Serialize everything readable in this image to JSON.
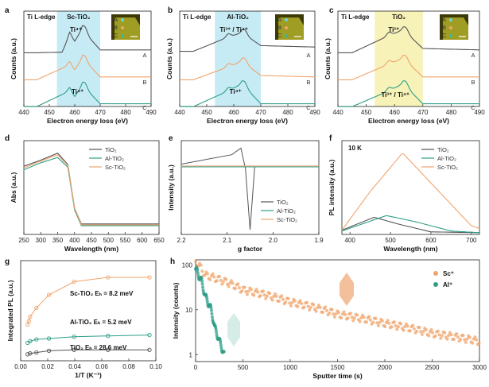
{
  "colors": {
    "tio2": "#555555",
    "al": "#2e9e87",
    "sc": "#f0a46c",
    "cyan_band": "#c6ebf5",
    "yellow_band": "#f7f2b8"
  },
  "chart_data": [
    {
      "panel": "a",
      "type": "line",
      "title": "Ti L-edge",
      "band_label": "Sc-TiO₂",
      "xlabel": "Electron energy loss (eV)",
      "ylabel": "Counts (a.u.)",
      "xlim": [
        440,
        490
      ],
      "xticks": [
        "440",
        "450",
        "460",
        "470",
        "480",
        "490"
      ],
      "band": [
        453,
        470
      ],
      "series": [
        {
          "name": "A",
          "values": [
            [
              445,
              0.1
            ],
            [
              455,
              0.12
            ],
            [
              458,
              0.7
            ],
            [
              460,
              0.5
            ],
            [
              463,
              0.95
            ],
            [
              466,
              0.6
            ],
            [
              470,
              0.2
            ],
            [
              490,
              0.2
            ]
          ]
        },
        {
          "name": "B",
          "values": [
            [
              445,
              0.1
            ],
            [
              458,
              0.62
            ],
            [
              460,
              0.45
            ],
            [
              463,
              0.85
            ],
            [
              470,
              0.2
            ],
            [
              490,
              0.2
            ]
          ]
        },
        {
          "name": "C",
          "values": [
            [
              445,
              0.05
            ],
            [
              458,
              0.6
            ],
            [
              460,
              0.4
            ],
            [
              463,
              0.8
            ],
            [
              470,
              0.15
            ],
            [
              490,
              0.15
            ]
          ]
        }
      ],
      "annotations": [
        "Ti⁴⁺",
        "Ti⁴⁺"
      ],
      "inset_labels": [
        "A",
        "B",
        "C"
      ]
    },
    {
      "panel": "b",
      "type": "line",
      "title": "Ti L-edge",
      "band_label": "Al-TiO₂",
      "xlabel": "Electron energy loss (eV)",
      "ylabel": "Counts (a.u.)",
      "xlim": [
        440,
        490
      ],
      "xticks": [
        "440",
        "450",
        "460",
        "470",
        "480",
        "490"
      ],
      "band": [
        453,
        470
      ],
      "series": [
        {
          "name": "A",
          "values": [
            [
              445,
              0.15
            ],
            [
              458,
              0.65
            ],
            [
              463,
              0.8
            ],
            [
              470,
              0.35
            ],
            [
              490,
              0.3
            ]
          ]
        },
        {
          "name": "B",
          "values": [
            [
              445,
              0.1
            ],
            [
              458,
              0.55
            ],
            [
              463,
              0.75
            ],
            [
              470,
              0.25
            ],
            [
              490,
              0.2
            ]
          ]
        },
        {
          "name": "C",
          "values": [
            [
              445,
              0.05
            ],
            [
              458,
              0.6
            ],
            [
              463,
              0.85
            ],
            [
              470,
              0.15
            ],
            [
              490,
              0.15
            ]
          ]
        }
      ],
      "annotations": [
        "Ti³⁺ / Ti⁴⁺",
        "Ti⁴⁺"
      ],
      "inset_labels": [
        "A",
        "B",
        "C"
      ]
    },
    {
      "panel": "c",
      "type": "line",
      "title": "Ti L-edge",
      "band_label": "TiO₂",
      "xlabel": "Electron energy loss (eV)",
      "ylabel": "Counts (a.u.)",
      "xlim": [
        440,
        490
      ],
      "xticks": [
        "440",
        "450",
        "460",
        "470",
        "480",
        "490"
      ],
      "band": [
        453,
        470
      ],
      "series": [
        {
          "name": "A",
          "values": [
            [
              445,
              0.1
            ],
            [
              458,
              0.7
            ],
            [
              463,
              0.9
            ],
            [
              470,
              0.25
            ],
            [
              490,
              0.2
            ]
          ]
        },
        {
          "name": "B",
          "values": [
            [
              445,
              0.1
            ],
            [
              458,
              0.65
            ],
            [
              463,
              0.85
            ],
            [
              470,
              0.2
            ],
            [
              490,
              0.2
            ]
          ]
        },
        {
          "name": "C",
          "values": [
            [
              445,
              0.05
            ],
            [
              458,
              0.6
            ],
            [
              463,
              0.85
            ],
            [
              470,
              0.15
            ],
            [
              490,
              0.15
            ]
          ]
        }
      ],
      "annotations": [
        "Ti³⁺",
        "Ti³⁺ / Ti⁴⁺"
      ],
      "inset_labels": [
        "A",
        "B",
        "C"
      ]
    },
    {
      "panel": "d",
      "type": "line",
      "xlabel": "Wavelength (nm)",
      "ylabel": "Abs (a.u.)",
      "xlim": [
        250,
        650
      ],
      "xticks": [
        "250",
        "300",
        "350",
        "400",
        "450",
        "500",
        "550",
        "600",
        "650"
      ],
      "legend": [
        "TiO₂",
        "Al-TiO₂",
        "Sc-TiO₂"
      ],
      "series": [
        {
          "name": "TiO₂",
          "values": [
            [
              250,
              0.78
            ],
            [
              300,
              0.85
            ],
            [
              350,
              0.93
            ],
            [
              380,
              0.8
            ],
            [
              400,
              0.3
            ],
            [
              420,
              0.12
            ],
            [
              650,
              0.12
            ]
          ]
        },
        {
          "name": "Al-TiO₂",
          "values": [
            [
              250,
              0.74
            ],
            [
              300,
              0.82
            ],
            [
              350,
              0.88
            ],
            [
              380,
              0.77
            ],
            [
              400,
              0.28
            ],
            [
              420,
              0.1
            ],
            [
              650,
              0.1
            ]
          ]
        },
        {
          "name": "Sc-TiO₂",
          "values": [
            [
              250,
              0.76
            ],
            [
              300,
              0.84
            ],
            [
              350,
              0.91
            ],
            [
              380,
              0.79
            ],
            [
              400,
              0.3
            ],
            [
              420,
              0.11
            ],
            [
              650,
              0.11
            ]
          ]
        }
      ]
    },
    {
      "panel": "e",
      "type": "line",
      "xlabel": "g factor",
      "ylabel": "Intensity (a.u.)",
      "xlim": [
        2.2,
        1.9
      ],
      "xticks": [
        "2.2",
        "2.1",
        "2.0",
        "1.9"
      ],
      "legend": [
        "TiO₂",
        "Al-TiO₂",
        "Sc-TiO₂"
      ],
      "series": [
        {
          "name": "TiO₂",
          "values": [
            [
              2.2,
              0.75
            ],
            [
              2.09,
              0.85
            ],
            [
              2.07,
              0.92
            ],
            [
              2.06,
              0.7
            ],
            [
              2.05,
              0.05
            ],
            [
              2.04,
              0.72
            ],
            [
              1.9,
              0.72
            ]
          ]
        },
        {
          "name": "Al-TiO₂",
          "values": [
            [
              2.2,
              0.72
            ],
            [
              2.05,
              0.72
            ],
            [
              1.9,
              0.72
            ]
          ]
        },
        {
          "name": "Sc-TiO₂",
          "values": [
            [
              2.2,
              0.73
            ],
            [
              2.05,
              0.73
            ],
            [
              1.9,
              0.73
            ]
          ]
        }
      ]
    },
    {
      "panel": "f",
      "type": "line",
      "title": "10 K",
      "xlabel": "Wavelength (nm)",
      "ylabel": "PL intensity (a.u.)",
      "xlim": [
        380,
        720
      ],
      "xticks": [
        "400",
        "500",
        "600",
        "700"
      ],
      "legend": [
        "TiO₂",
        "Al-TiO₂",
        "Sc-TiO₂"
      ],
      "series": [
        {
          "name": "TiO₂",
          "values": [
            [
              380,
              0.05
            ],
            [
              460,
              0.2
            ],
            [
              520,
              0.12
            ],
            [
              600,
              0.03
            ],
            [
              720,
              0.02
            ]
          ]
        },
        {
          "name": "Al-TiO₂",
          "values": [
            [
              380,
              0.04
            ],
            [
              490,
              0.22
            ],
            [
              560,
              0.15
            ],
            [
              650,
              0.04
            ],
            [
              720,
              0.02
            ]
          ]
        },
        {
          "name": "Sc-TiO₂",
          "values": [
            [
              380,
              0.05
            ],
            [
              450,
              0.5
            ],
            [
              530,
              0.95
            ],
            [
              600,
              0.6
            ],
            [
              700,
              0.1
            ],
            [
              720,
              0.07
            ]
          ]
        }
      ]
    },
    {
      "panel": "g",
      "type": "scatter",
      "xlabel": "1/T (K⁻¹)",
      "ylabel": "Integrated PL (a.u.)",
      "xlim": [
        0,
        0.1
      ],
      "xticks": [
        "0.00",
        "0.02",
        "0.04",
        "0.06",
        "0.08",
        "0.10"
      ],
      "annotations": [
        "Sc-TiO₂  Eₕ = 8.2 meV",
        "Al-TiO₂  Eₕ = 5.2 meV",
        "TiO₂  Eₕ = 28.6 meV"
      ],
      "series": [
        {
          "name": "Sc-TiO₂",
          "values": [
            [
              0.003,
              0.36
            ],
            [
              0.004,
              0.4
            ],
            [
              0.005,
              0.45
            ],
            [
              0.01,
              0.55
            ],
            [
              0.02,
              0.7
            ],
            [
              0.04,
              0.85
            ],
            [
              0.067,
              0.9
            ],
            [
              0.1,
              0.9
            ]
          ]
        },
        {
          "name": "Al-TiO₂",
          "values": [
            [
              0.003,
              0.15
            ],
            [
              0.005,
              0.17
            ],
            [
              0.01,
              0.19
            ],
            [
              0.02,
              0.2
            ],
            [
              0.04,
              0.22
            ],
            [
              0.067,
              0.23
            ],
            [
              0.1,
              0.24
            ]
          ]
        },
        {
          "name": "TiO₂",
          "values": [
            [
              0.003,
              0.02
            ],
            [
              0.005,
              0.03
            ],
            [
              0.01,
              0.04
            ],
            [
              0.02,
              0.06
            ],
            [
              0.04,
              0.07
            ],
            [
              0.067,
              0.07
            ],
            [
              0.1,
              0.07
            ]
          ]
        }
      ]
    },
    {
      "panel": "h",
      "type": "scatter",
      "xlabel": "Sputter time (s)",
      "ylabel": "Intensity (counts)",
      "xlim": [
        0,
        3000
      ],
      "ylim_log": [
        0.7,
        130
      ],
      "xticks": [
        "0",
        "500",
        "1000",
        "1500",
        "2000",
        "2500",
        "3000"
      ],
      "yticks": [
        "1",
        "10",
        "100"
      ],
      "legend": [
        "Sc⁺",
        "Al⁺"
      ],
      "series": [
        {
          "name": "Sc⁺",
          "values": [
            [
              0,
              120
            ],
            [
              100,
              60
            ],
            [
              500,
              28
            ],
            [
              1000,
              15
            ],
            [
              1500,
              8
            ],
            [
              2000,
              5
            ],
            [
              2500,
              3
            ],
            [
              3000,
              2
            ]
          ]
        },
        {
          "name": "Al⁺",
          "values": [
            [
              0,
              80
            ],
            [
              100,
              20
            ],
            [
              200,
              4
            ],
            [
              250,
              2
            ],
            [
              300,
              1
            ]
          ]
        }
      ]
    }
  ]
}
